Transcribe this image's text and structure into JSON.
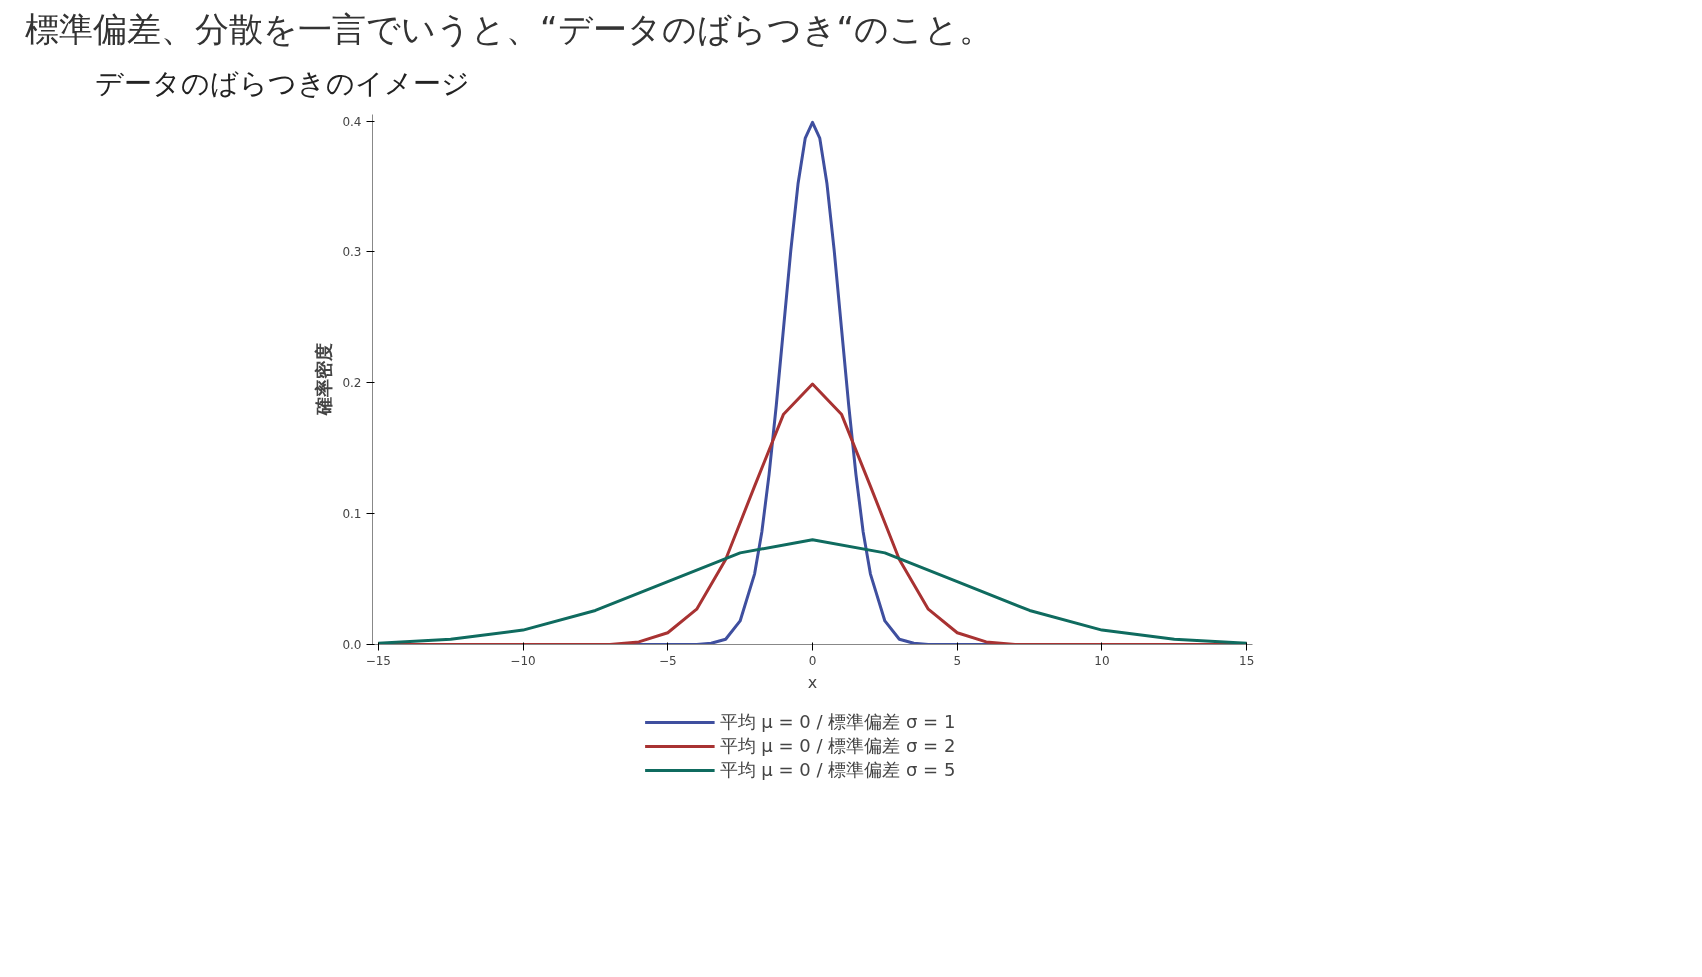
{
  "chart_data": {
    "type": "line",
    "title": "標準偏差、分散を一言でいうと、“データのばらつき“のこと。",
    "subtitle": "データのばらつきのイメージ",
    "xlabel": "x",
    "ylabel": "確率密度",
    "xlim": [
      -15.2,
      15.2
    ],
    "ylim": [
      0,
      0.405
    ],
    "xticks": [
      {
        "value": -15,
        "label": "−15"
      },
      {
        "value": -10,
        "label": "−10"
      },
      {
        "value": -5,
        "label": "−5"
      },
      0,
      5,
      10,
      15
    ],
    "yticks": [
      {
        "value": 0,
        "label": "0.0"
      },
      0.1,
      0.2,
      0.3,
      0.4
    ],
    "grid": false,
    "legend": "bottom",
    "marker": "none",
    "line_style": "solid",
    "series": [
      {
        "name": "平均 μ = 0 / 標準偏差 σ = 1",
        "color": "#3f4f9f",
        "x": [
          -15,
          -4,
          -3.5,
          -3,
          -2.5,
          -2,
          -1.75,
          -1.5,
          -1.25,
          -1,
          -0.75,
          -0.5,
          -0.25,
          0,
          0.25,
          0.5,
          0.75,
          1,
          1.25,
          1.5,
          1.75,
          2,
          2.5,
          3,
          3.5,
          4,
          15
        ],
        "values": [
          0,
          0,
          0.001,
          0.004,
          0.018,
          0.054,
          0.086,
          0.13,
          0.183,
          0.242,
          0.301,
          0.352,
          0.387,
          0.399,
          0.387,
          0.352,
          0.301,
          0.242,
          0.183,
          0.13,
          0.086,
          0.054,
          0.018,
          0.004,
          0.001,
          0,
          0
        ]
      },
      {
        "name": "平均 μ = 0 / 標準偏差 σ = 2",
        "color": "#a83232",
        "x": [
          -15,
          -7,
          -6,
          -5,
          -4,
          -3,
          -2,
          -1,
          0,
          1,
          2,
          3,
          4,
          5,
          6,
          7,
          15
        ],
        "values": [
          0,
          0,
          0.002,
          0.009,
          0.027,
          0.065,
          0.121,
          0.176,
          0.199,
          0.176,
          0.121,
          0.065,
          0.027,
          0.009,
          0.002,
          0,
          0
        ]
      },
      {
        "name": "平均 μ = 0 / 標準偏差 σ = 5",
        "color": "#0f6b5f",
        "x": [
          -15,
          -12.5,
          -10,
          -7.5,
          -5,
          -2.5,
          0,
          2.5,
          5,
          7.5,
          10,
          12.5,
          15
        ],
        "values": [
          0.001,
          0.004,
          0.011,
          0.026,
          0.048,
          0.07,
          0.08,
          0.07,
          0.048,
          0.026,
          0.011,
          0.004,
          0.001
        ]
      }
    ]
  }
}
